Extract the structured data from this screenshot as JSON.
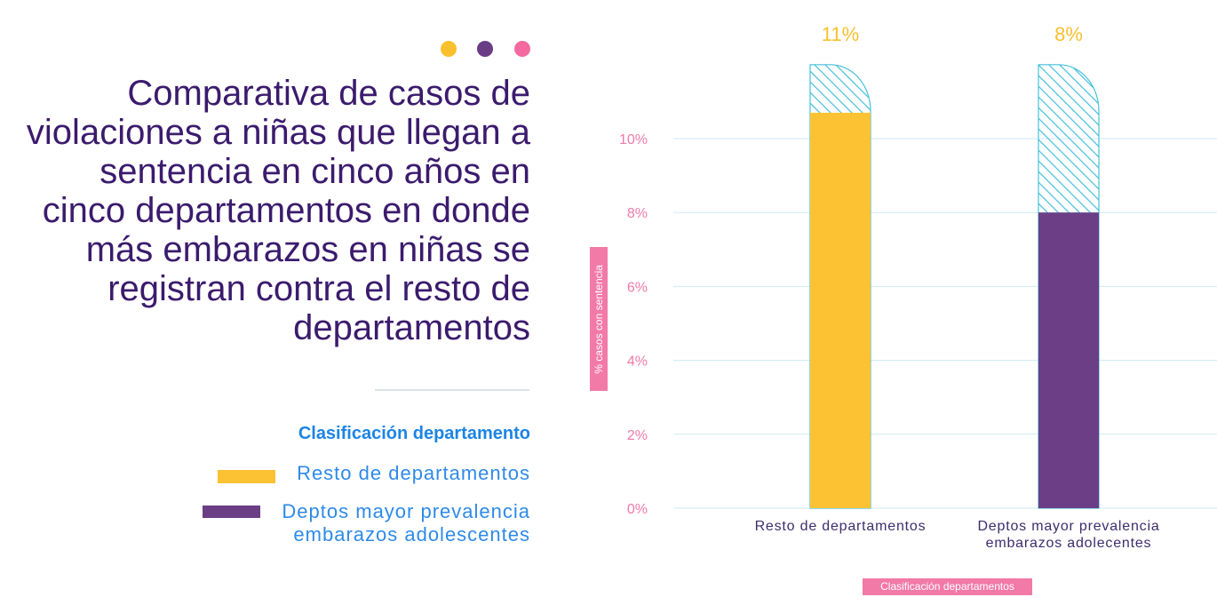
{
  "dots": [
    {
      "color": "#fbc02d"
    },
    {
      "color": "#6b3c86"
    },
    {
      "color": "#f46aa0"
    }
  ],
  "title": {
    "lines": [
      "Comparativa de casos de",
      "violaciones a niñas que llegan a",
      "sentencia en cinco años en",
      "cinco departamentos en donde",
      "más embarazos en niñas se",
      "registran contra el resto de",
      "departamentos"
    ]
  },
  "legend": {
    "title": "Clasificación departamento",
    "items": [
      {
        "lines": [
          "Resto de departamentos"
        ],
        "color": "#fcc234"
      },
      {
        "lines": [
          "Deptos mayor prevalencia",
          "embarazos adolescentes"
        ],
        "color": "#6b3e86"
      }
    ]
  },
  "chart_data": {
    "type": "bar",
    "categories": [
      [
        "Resto de departamentos"
      ],
      [
        "Deptos mayor prevalencia",
        "embarazos adolecentes"
      ]
    ],
    "values": [
      10.7,
      8.0
    ],
    "data_labels": [
      "11%",
      "8%"
    ],
    "bar_colors": [
      "#fcc234",
      "#6b3e86"
    ],
    "xlabel": "Clasificación departamentos",
    "ylabel": "% casos con sentencia",
    "yticks": [
      0,
      2,
      4,
      6,
      8,
      10
    ],
    "ytick_labels": [
      "0%",
      "2%",
      "4%",
      "6%",
      "8%",
      "10%"
    ],
    "ylim": [
      0,
      12
    ],
    "grid": true,
    "colors": {
      "grid": "#cde9f4",
      "hatch": "#45c1da",
      "tick_text": "#f07aa8",
      "data_label": "#f8c02f",
      "category_text": "#3d2d6e",
      "axis_title_bg": "#f27aa7"
    }
  }
}
